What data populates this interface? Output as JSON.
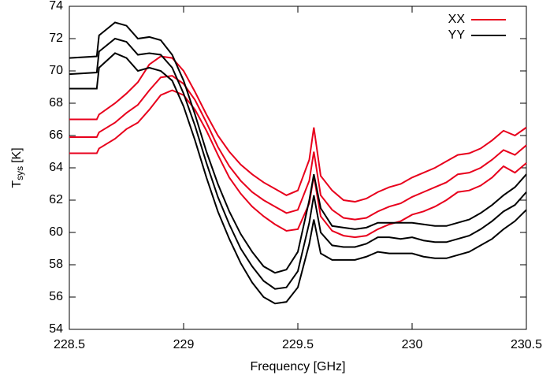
{
  "chart_data": {
    "type": "line",
    "xlabel": "Frequency [GHz]",
    "ylabel": {
      "symbol": "T",
      "subscript": "sys",
      "unit": "[K]"
    },
    "x": [
      228.5,
      228.62,
      228.63,
      228.7,
      228.75,
      228.8,
      228.85,
      228.9,
      228.95,
      229.0,
      229.05,
      229.1,
      229.15,
      229.2,
      229.25,
      229.3,
      229.35,
      229.4,
      229.45,
      229.5,
      229.55,
      229.57,
      229.6,
      229.65,
      229.7,
      229.75,
      229.8,
      229.85,
      229.9,
      229.95,
      230.0,
      230.05,
      230.1,
      230.15,
      230.2,
      230.25,
      230.3,
      230.35,
      230.4,
      230.45,
      230.5
    ],
    "series": [
      {
        "name": "XX",
        "color": "#e8001c",
        "values": [
          67.0,
          67.0,
          67.3,
          68.0,
          68.6,
          69.3,
          70.4,
          70.9,
          70.8,
          70.0,
          68.7,
          67.3,
          66.0,
          65.0,
          64.2,
          63.6,
          63.1,
          62.7,
          62.3,
          62.6,
          64.5,
          66.5,
          63.5,
          62.6,
          62.0,
          61.9,
          62.1,
          62.5,
          62.8,
          63.0,
          63.4,
          63.7,
          64.0,
          64.4,
          64.8,
          64.9,
          65.2,
          65.7,
          66.3,
          66.0,
          66.5
        ]
      },
      {
        "color": "#e8001c",
        "values": [
          65.9,
          65.9,
          66.2,
          66.8,
          67.4,
          67.9,
          68.8,
          69.6,
          69.7,
          69.2,
          68.2,
          66.8,
          65.3,
          64.1,
          63.2,
          62.5,
          62.0,
          61.6,
          61.2,
          61.4,
          63.2,
          65.0,
          62.3,
          61.4,
          60.9,
          60.8,
          60.9,
          61.3,
          61.6,
          61.8,
          62.2,
          62.5,
          62.8,
          63.1,
          63.6,
          63.7,
          64.0,
          64.5,
          65.1,
          64.8,
          65.4
        ]
      },
      {
        "color": "#e8001c",
        "values": [
          64.9,
          64.9,
          65.2,
          65.8,
          66.4,
          66.8,
          67.6,
          68.5,
          68.8,
          68.5,
          67.6,
          66.3,
          64.8,
          63.4,
          62.4,
          61.6,
          61.0,
          60.5,
          60.1,
          60.2,
          61.8,
          63.5,
          61.0,
          60.1,
          59.8,
          59.7,
          59.8,
          60.2,
          60.5,
          60.7,
          61.1,
          61.3,
          61.6,
          62.0,
          62.5,
          62.6,
          62.9,
          63.4,
          64.1,
          63.7,
          64.3
        ]
      },
      {
        "name": "YY",
        "color": "#000000",
        "values": [
          70.8,
          70.9,
          72.2,
          73.0,
          72.8,
          72.0,
          72.1,
          71.9,
          71.0,
          69.4,
          67.3,
          65.0,
          63.0,
          61.3,
          59.9,
          58.8,
          57.9,
          57.5,
          57.7,
          58.8,
          62.0,
          63.6,
          61.5,
          60.4,
          60.3,
          60.2,
          60.3,
          60.6,
          60.6,
          60.6,
          60.6,
          60.5,
          60.4,
          60.4,
          60.6,
          60.8,
          61.2,
          61.7,
          62.3,
          62.8,
          63.6
        ]
      },
      {
        "color": "#000000",
        "values": [
          69.8,
          69.9,
          71.2,
          72.0,
          71.8,
          71.0,
          71.1,
          71.0,
          70.2,
          68.6,
          66.6,
          64.3,
          62.2,
          60.5,
          59.0,
          57.9,
          57.0,
          56.5,
          56.6,
          57.6,
          60.6,
          62.3,
          60.0,
          59.2,
          59.1,
          59.1,
          59.3,
          59.7,
          59.7,
          59.6,
          59.7,
          59.5,
          59.4,
          59.4,
          59.6,
          59.8,
          60.2,
          60.7,
          61.3,
          61.7,
          62.5
        ]
      },
      {
        "color": "#000000",
        "values": [
          68.9,
          68.9,
          70.2,
          71.1,
          70.8,
          70.0,
          70.2,
          70.0,
          69.4,
          67.8,
          65.7,
          63.4,
          61.3,
          59.6,
          58.1,
          56.9,
          56.0,
          55.6,
          55.7,
          56.6,
          59.3,
          60.8,
          58.7,
          58.3,
          58.3,
          58.3,
          58.5,
          58.8,
          58.7,
          58.7,
          58.7,
          58.5,
          58.4,
          58.4,
          58.6,
          58.8,
          59.2,
          59.6,
          60.2,
          60.7,
          61.4
        ]
      }
    ],
    "xlim": [
      228.5,
      230.5
    ],
    "xticks": [
      228.5,
      229,
      229.5,
      230,
      230.5
    ],
    "ylim": [
      54,
      74
    ],
    "yticks": [
      54,
      56,
      58,
      60,
      62,
      64,
      66,
      68,
      70,
      72,
      74
    ],
    "grid": false,
    "legend": "top-right"
  }
}
